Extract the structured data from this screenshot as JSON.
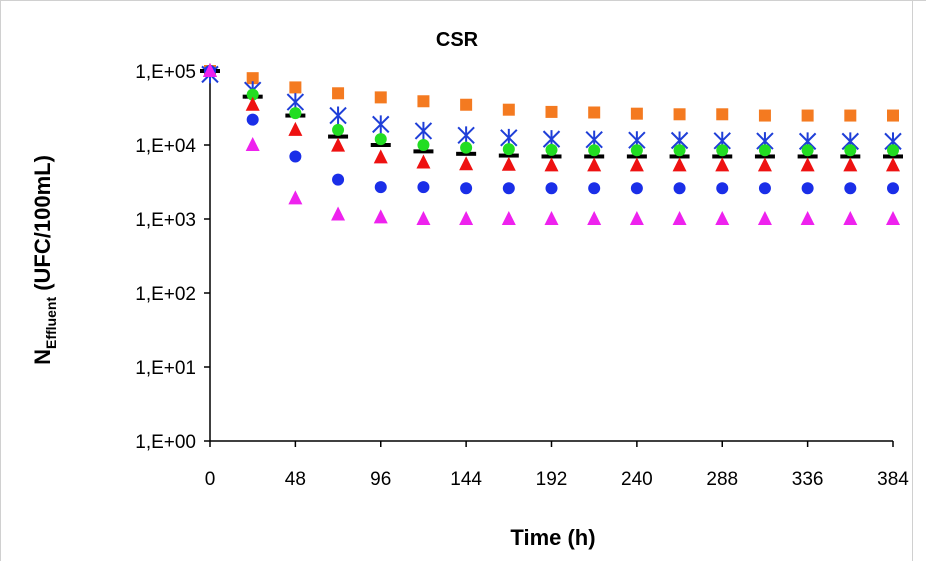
{
  "chart_data": {
    "type": "scatter",
    "title": "CSR",
    "xlabel": "Time (h)",
    "ylabel_main": "N",
    "ylabel_sub": "Effluent",
    "ylabel_rest": " (UFC/100mL)",
    "yscale": "log",
    "xlim": [
      0,
      384
    ],
    "ylim": [
      1,
      100000
    ],
    "x_ticks": [
      0,
      48,
      96,
      144,
      192,
      240,
      288,
      336,
      384
    ],
    "x_tick_labels": [
      "0",
      "48",
      "96",
      "144",
      "192",
      "240",
      "288",
      "336",
      "384"
    ],
    "y_ticks": [
      1,
      10,
      100,
      1000,
      10000,
      100000
    ],
    "y_tick_labels": [
      "1,E+00",
      "1,E+01",
      "1,E+02",
      "1,E+03",
      "1,E+04",
      "1,E+05"
    ],
    "grid": false,
    "legend": "none",
    "x": [
      0,
      24,
      48,
      72,
      96,
      120,
      144,
      168,
      192,
      216,
      240,
      264,
      288,
      312,
      336,
      360,
      384
    ],
    "series": [
      {
        "marker": "square",
        "color": "#f47a20",
        "values": [
          100000,
          80000,
          60000,
          50000,
          44000,
          39000,
          35000,
          30000,
          28000,
          27500,
          26500,
          26000,
          26000,
          25000,
          25000,
          25000,
          25000
        ]
      },
      {
        "marker": "x-star",
        "color": "#1f3fd8",
        "values": [
          90000,
          55000,
          38000,
          25000,
          19000,
          15500,
          13500,
          12500,
          12000,
          11800,
          11600,
          11500,
          11400,
          11300,
          11200,
          11200,
          11200
        ]
      },
      {
        "marker": "dash",
        "color": "#000000",
        "values": [
          100000,
          45000,
          25000,
          13000,
          10000,
          8200,
          7600,
          7200,
          7000,
          7000,
          7000,
          7000,
          7000,
          7000,
          7000,
          7000,
          7000
        ]
      },
      {
        "marker": "circle",
        "color": "#22dd22",
        "values": [
          100000,
          48000,
          27000,
          16000,
          12000,
          10000,
          9200,
          8800,
          8600,
          8500,
          8500,
          8500,
          8500,
          8500,
          8500,
          8500,
          8500
        ]
      },
      {
        "marker": "triangle",
        "color": "#ee1111",
        "values": [
          100000,
          35000,
          16000,
          9800,
          6800,
          5800,
          5500,
          5400,
          5300,
          5300,
          5300,
          5300,
          5300,
          5300,
          5300,
          5300,
          5300
        ]
      },
      {
        "marker": "circle",
        "color": "#1a2ee8",
        "values": [
          100000,
          22000,
          7000,
          3400,
          2700,
          2700,
          2600,
          2600,
          2600,
          2600,
          2600,
          2600,
          2600,
          2600,
          2600,
          2600,
          2600
        ]
      },
      {
        "marker": "triangle",
        "color": "#ee22ee",
        "values": [
          100000,
          10000,
          1900,
          1150,
          1050,
          1000,
          1000,
          1000,
          1000,
          1000,
          1000,
          1000,
          1000,
          1000,
          1000,
          1000,
          1000
        ]
      }
    ]
  }
}
